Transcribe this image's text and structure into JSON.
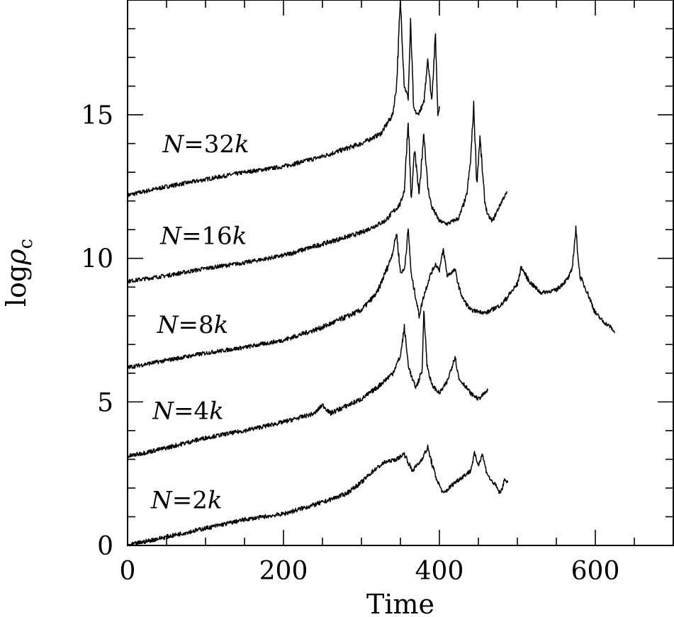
{
  "chart_data": {
    "type": "line",
    "title": "",
    "xlabel": "Time",
    "ylabel_parts": {
      "main": "log",
      "symbol": "ρ",
      "subscript": "c"
    },
    "xlim": [
      0,
      700
    ],
    "ylim": [
      0,
      19
    ],
    "x_ticks": [
      0,
      200,
      400,
      600
    ],
    "y_ticks": [
      0,
      5,
      10,
      15
    ],
    "x_minor_step": 50,
    "y_minor_step": 1,
    "grid": false,
    "legend": "none",
    "series": [
      {
        "label_parts": {
          "var": "N",
          "eq": "=32",
          "unit": "k"
        },
        "label_anchor": [
          45,
          13.7
        ],
        "points": [
          [
            0,
            12.2
          ],
          [
            50,
            12.5
          ],
          [
            100,
            12.75
          ],
          [
            150,
            13.0
          ],
          [
            200,
            13.2
          ],
          [
            250,
            13.55
          ],
          [
            300,
            14.0
          ],
          [
            325,
            14.35
          ],
          [
            340,
            15.0
          ],
          [
            345,
            16.0
          ],
          [
            350,
            19.0
          ],
          [
            355,
            16.0
          ],
          [
            360,
            15.6
          ],
          [
            363,
            18.2
          ],
          [
            367,
            15.2
          ],
          [
            372,
            15.0
          ],
          [
            380,
            15.4
          ],
          [
            385,
            17.0
          ],
          [
            390,
            15.5
          ],
          [
            395,
            17.8
          ],
          [
            398,
            15.0
          ],
          [
            400,
            15.3
          ]
        ]
      },
      {
        "label_parts": {
          "var": "N",
          "eq": "=16",
          "unit": "k"
        },
        "label_anchor": [
          42,
          10.5
        ],
        "points": [
          [
            0,
            9.2
          ],
          [
            50,
            9.4
          ],
          [
            100,
            9.65
          ],
          [
            150,
            9.85
          ],
          [
            200,
            10.1
          ],
          [
            250,
            10.5
          ],
          [
            300,
            10.9
          ],
          [
            330,
            11.3
          ],
          [
            350,
            11.9
          ],
          [
            355,
            12.4
          ],
          [
            360,
            14.8
          ],
          [
            364,
            12.0
          ],
          [
            368,
            13.8
          ],
          [
            374,
            12.2
          ],
          [
            380,
            14.4
          ],
          [
            385,
            12.5
          ],
          [
            390,
            11.8
          ],
          [
            400,
            11.3
          ],
          [
            410,
            11.2
          ],
          [
            425,
            11.4
          ],
          [
            435,
            12.2
          ],
          [
            440,
            13.4
          ],
          [
            444,
            15.3
          ],
          [
            448,
            12.6
          ],
          [
            452,
            14.2
          ],
          [
            458,
            12.0
          ],
          [
            462,
            11.5
          ],
          [
            468,
            11.3
          ],
          [
            475,
            11.7
          ],
          [
            482,
            12.1
          ],
          [
            487,
            12.3
          ]
        ]
      },
      {
        "label_parts": {
          "var": "N",
          "eq": "=8",
          "unit": "k"
        },
        "label_anchor": [
          38,
          7.4
        ],
        "points": [
          [
            0,
            6.2
          ],
          [
            50,
            6.45
          ],
          [
            100,
            6.7
          ],
          [
            150,
            6.9
          ],
          [
            200,
            7.15
          ],
          [
            250,
            7.6
          ],
          [
            300,
            8.2
          ],
          [
            320,
            8.8
          ],
          [
            335,
            9.8
          ],
          [
            340,
            10.2
          ],
          [
            345,
            10.9
          ],
          [
            350,
            9.5
          ],
          [
            355,
            9.6
          ],
          [
            360,
            11.0
          ],
          [
            364,
            9.4
          ],
          [
            370,
            8.6
          ],
          [
            374,
            8.0
          ],
          [
            380,
            8.7
          ],
          [
            388,
            9.4
          ],
          [
            395,
            9.8
          ],
          [
            400,
            9.6
          ],
          [
            405,
            10.3
          ],
          [
            410,
            9.4
          ],
          [
            420,
            9.6
          ],
          [
            425,
            9.0
          ],
          [
            430,
            8.6
          ],
          [
            440,
            8.2
          ],
          [
            460,
            8.1
          ],
          [
            480,
            8.4
          ],
          [
            500,
            9.1
          ],
          [
            505,
            9.7
          ],
          [
            515,
            9.2
          ],
          [
            530,
            8.8
          ],
          [
            550,
            8.9
          ],
          [
            565,
            9.3
          ],
          [
            570,
            9.6
          ],
          [
            575,
            11.0
          ],
          [
            580,
            9.4
          ],
          [
            590,
            8.8
          ],
          [
            600,
            8.1
          ],
          [
            610,
            7.8
          ],
          [
            620,
            7.6
          ],
          [
            625,
            7.4
          ]
        ]
      },
      {
        "label_parts": {
          "var": "N",
          "eq": "=4",
          "unit": "k"
        },
        "label_anchor": [
          32,
          4.4
        ],
        "points": [
          [
            0,
            3.1
          ],
          [
            50,
            3.4
          ],
          [
            100,
            3.75
          ],
          [
            150,
            4.0
          ],
          [
            200,
            4.3
          ],
          [
            240,
            4.6
          ],
          [
            250,
            4.9
          ],
          [
            260,
            4.6
          ],
          [
            300,
            5.1
          ],
          [
            320,
            5.5
          ],
          [
            340,
            6.0
          ],
          [
            350,
            6.6
          ],
          [
            355,
            7.6
          ],
          [
            360,
            6.3
          ],
          [
            365,
            5.8
          ],
          [
            370,
            5.5
          ],
          [
            378,
            6.1
          ],
          [
            380,
            8.3
          ],
          [
            384,
            6.3
          ],
          [
            390,
            5.6
          ],
          [
            400,
            5.3
          ],
          [
            410,
            5.7
          ],
          [
            420,
            6.6
          ],
          [
            425,
            5.8
          ],
          [
            432,
            5.6
          ],
          [
            440,
            5.3
          ],
          [
            450,
            5.1
          ],
          [
            458,
            5.3
          ],
          [
            462,
            5.4
          ]
        ]
      },
      {
        "label_parts": {
          "var": "N",
          "eq": "=2",
          "unit": "k"
        },
        "label_anchor": [
          30,
          1.3
        ],
        "points": [
          [
            0,
            0.0
          ],
          [
            50,
            0.3
          ],
          [
            100,
            0.6
          ],
          [
            150,
            0.9
          ],
          [
            200,
            1.1
          ],
          [
            250,
            1.5
          ],
          [
            280,
            1.8
          ],
          [
            300,
            2.2
          ],
          [
            315,
            2.6
          ],
          [
            330,
            2.9
          ],
          [
            345,
            3.0
          ],
          [
            355,
            3.2
          ],
          [
            365,
            2.6
          ],
          [
            375,
            2.9
          ],
          [
            385,
            3.4
          ],
          [
            395,
            2.4
          ],
          [
            400,
            2.1
          ],
          [
            405,
            1.8
          ],
          [
            420,
            2.2
          ],
          [
            440,
            2.6
          ],
          [
            445,
            3.2
          ],
          [
            450,
            2.8
          ],
          [
            455,
            3.2
          ],
          [
            460,
            2.6
          ],
          [
            465,
            2.3
          ],
          [
            472,
            2.1
          ],
          [
            478,
            1.8
          ],
          [
            484,
            2.3
          ],
          [
            488,
            2.2
          ]
        ]
      }
    ]
  }
}
